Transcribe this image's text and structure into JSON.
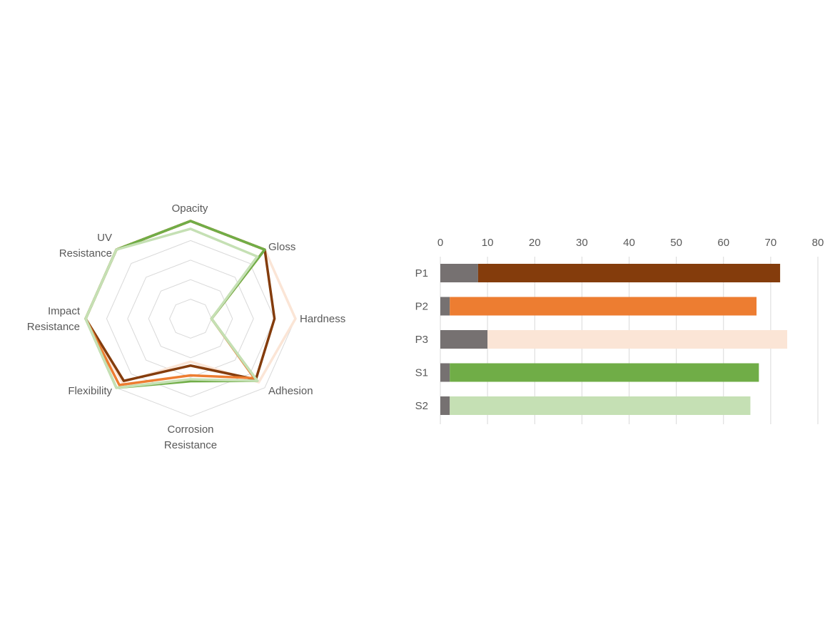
{
  "chart_data": [
    {
      "type": "radar",
      "categories": [
        "Opacity",
        "Gloss",
        "Hardness",
        "Adhesion",
        "Corrosion Resistance",
        "Flexibility",
        "Impact Resistance",
        "UV Resistance"
      ],
      "category_lines": [
        [
          "Opacity"
        ],
        [
          "Gloss"
        ],
        [
          "Hardness"
        ],
        [
          "Adhesion"
        ],
        [
          "Corrosion",
          "Resistance"
        ],
        [
          "Flexibility"
        ],
        [
          "Impact",
          "Resistance"
        ],
        [
          "UV",
          "Resistance"
        ]
      ],
      "range": [
        0,
        5
      ],
      "rings": 5,
      "grid": true,
      "series": [
        {
          "name": "P3",
          "color": "#FBE5D6",
          "values": [
            5,
            5,
            5,
            4.6,
            2.2,
            4.6,
            5,
            5
          ]
        },
        {
          "name": "P1",
          "color": "#843C0C",
          "values": [
            5,
            5,
            4,
            4.4,
            2.4,
            4.5,
            5,
            5
          ]
        },
        {
          "name": "P2",
          "color": "#ED7D31",
          "values": [
            5,
            5,
            1,
            4.3,
            2.9,
            4.8,
            5,
            5
          ]
        },
        {
          "name": "S1",
          "color": "#70AD47",
          "values": [
            5,
            5,
            1,
            4.5,
            3.2,
            5,
            5,
            5
          ]
        },
        {
          "name": "S2",
          "color": "#C5E0B4",
          "values": [
            4.6,
            4.5,
            1,
            4.5,
            3.1,
            5,
            5,
            5
          ]
        }
      ]
    },
    {
      "type": "bar",
      "orientation": "horizontal",
      "stacked": true,
      "categories": [
        "P1",
        "P2",
        "P3",
        "S1",
        "S2"
      ],
      "xlim": [
        0,
        80
      ],
      "xticks": [
        "0",
        "10",
        "20",
        "30",
        "40",
        "50",
        "60",
        "70",
        "80"
      ],
      "grid": true,
      "series": [
        {
          "name": "base",
          "colors": [
            "#767171",
            "#767171",
            "#767171",
            "#767171",
            "#767171"
          ],
          "values": [
            8,
            2,
            10,
            2,
            2
          ]
        },
        {
          "name": "value",
          "colors": [
            "#843C0C",
            "#ED7D31",
            "#FBE5D6",
            "#70AD47",
            "#C5E0B4"
          ],
          "values": [
            64,
            65,
            63.5,
            65.5,
            63.7
          ]
        }
      ]
    }
  ]
}
